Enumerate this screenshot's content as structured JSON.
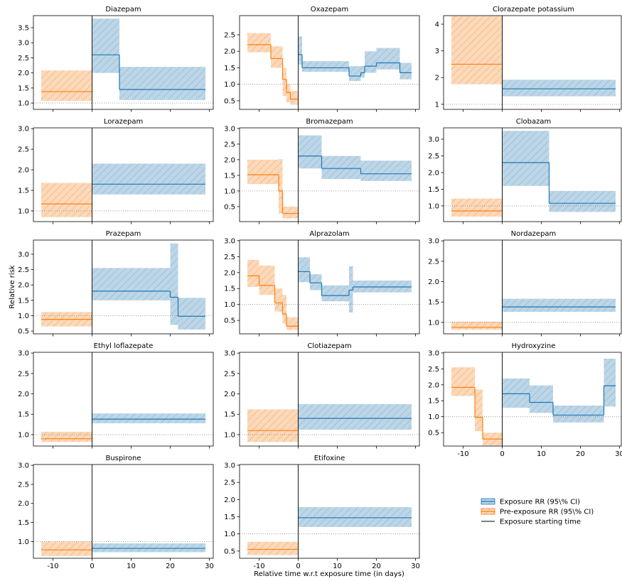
{
  "chart_data": [
    {
      "type": "step",
      "title": "Diazepam",
      "xlim": [
        -15,
        31
      ],
      "ylim": [
        0.79,
        3.9
      ],
      "xticks": [
        -10,
        0,
        10,
        20,
        30
      ],
      "yticks": [
        {
          "value": 1,
          "label": "1.0"
        },
        1.5,
        {
          "value": 2,
          "label": "2.0"
        },
        2.5,
        {
          "value": 3,
          "label": "3.0"
        },
        3.5
      ],
      "show_xticklabels": false,
      "hline": 1,
      "vline": 0,
      "series": [
        {
          "color": "#ff7f0e",
          "bins": [
            -13,
            0
          ],
          "values": [
            1.38
          ],
          "lower": [
            1.07
          ],
          "upper": [
            2.08
          ]
        },
        {
          "color": "#1f77b4",
          "bins": [
            0,
            7,
            29
          ],
          "values": [
            2.6,
            1.45
          ],
          "lower": [
            2.0,
            1.1
          ],
          "upper": [
            3.8,
            2.2
          ]
        }
      ]
    },
    {
      "type": "step",
      "title": "Oxazepam",
      "xlim": [
        -15,
        31
      ],
      "ylim": [
        0.24,
        3.08
      ],
      "xticks": [
        -10,
        0,
        10,
        20,
        30
      ],
      "yticks": [
        0.5,
        {
          "value": 1,
          "label": "1.0"
        },
        1.5,
        {
          "value": 2,
          "label": "2.0"
        },
        2.5
      ],
      "show_xticklabels": false,
      "hline": 1,
      "vline": 0,
      "series": [
        {
          "color": "#ff7f0e",
          "bins": [
            -13,
            -7,
            -4,
            -3,
            -2,
            0
          ],
          "values": [
            2.2,
            1.78,
            1.15,
            0.75,
            0.55
          ],
          "lower": [
            1.97,
            1.5,
            0.65,
            0.45,
            0.38
          ],
          "upper": [
            2.55,
            2.15,
            1.5,
            1.0,
            0.8
          ]
        },
        {
          "color": "#1f77b4",
          "bins": [
            0,
            1,
            13,
            16,
            17,
            20,
            26,
            29
          ],
          "values": [
            1.9,
            1.5,
            1.25,
            1.35,
            1.55,
            1.65,
            1.35
          ],
          "lower": [
            1.6,
            1.38,
            1.1,
            1.2,
            1.35,
            1.45,
            1.15
          ],
          "upper": [
            2.45,
            1.7,
            1.55,
            1.55,
            2.0,
            2.1,
            1.65
          ]
        }
      ]
    },
    {
      "type": "step",
      "title": "Clorazepate potassium",
      "xlim": [
        -15,
        31
      ],
      "ylim": [
        0.81,
        4.32
      ],
      "xticks": [
        -10,
        0,
        10,
        20,
        30
      ],
      "yticks": [
        1,
        2,
        3,
        4
      ],
      "show_xticklabels": false,
      "hline": 1,
      "vline": 0,
      "series": [
        {
          "color": "#ff7f0e",
          "bins": [
            -13,
            0
          ],
          "values": [
            2.5
          ],
          "lower": [
            1.75
          ],
          "upper": [
            4.3
          ]
        },
        {
          "color": "#1f77b4",
          "bins": [
            0,
            29
          ],
          "values": [
            1.58
          ],
          "lower": [
            1.3
          ],
          "upper": [
            1.92
          ]
        }
      ]
    },
    {
      "type": "step",
      "title": "Lorazepam",
      "xlim": [
        -15,
        31
      ],
      "ylim": [
        0.74,
        3.02
      ],
      "xticks": [
        -10,
        0,
        10,
        20,
        30
      ],
      "yticks": [
        {
          "value": 1,
          "label": "1.0"
        },
        1.5,
        {
          "value": 2,
          "label": "2.0"
        },
        2.5,
        {
          "value": 3,
          "label": "3.0"
        }
      ],
      "show_xticklabels": false,
      "hline": 1,
      "vline": 0,
      "series": [
        {
          "color": "#ff7f0e",
          "bins": [
            -13,
            0
          ],
          "values": [
            1.17
          ],
          "lower": [
            0.85
          ],
          "upper": [
            1.68
          ]
        },
        {
          "color": "#1f77b4",
          "bins": [
            0,
            29
          ],
          "values": [
            1.65
          ],
          "lower": [
            1.4
          ],
          "upper": [
            2.15
          ]
        }
      ]
    },
    {
      "type": "step",
      "title": "Bromazepam",
      "xlim": [
        -15,
        31
      ],
      "ylim": [
        0.02,
        3.02
      ],
      "xticks": [
        -10,
        0,
        10,
        20,
        30
      ],
      "yticks": [
        0.5,
        {
          "value": 1,
          "label": "1.0"
        },
        1.5,
        {
          "value": 2,
          "label": "2.0"
        },
        2.5,
        {
          "value": 3,
          "label": "3.0"
        }
      ],
      "show_xticklabels": false,
      "hline": 1,
      "vline": 0,
      "series": [
        {
          "color": "#ff7f0e",
          "bins": [
            -13,
            -5,
            -4,
            0
          ],
          "values": [
            1.52,
            1.0,
            0.28
          ],
          "lower": [
            1.22,
            0.28,
            0.12
          ],
          "upper": [
            2.0,
            2.02,
            0.5
          ]
        },
        {
          "color": "#1f77b4",
          "bins": [
            0,
            6,
            16,
            29
          ],
          "values": [
            2.12,
            1.72,
            1.55
          ],
          "lower": [
            1.72,
            1.38,
            1.32
          ],
          "upper": [
            2.78,
            2.12,
            1.97
          ]
        }
      ]
    },
    {
      "type": "step",
      "title": "Clobazam",
      "xlim": [
        -15,
        31
      ],
      "ylim": [
        0.53,
        3.34
      ],
      "xticks": [
        -10,
        0,
        10,
        20,
        30
      ],
      "yticks": [
        {
          "value": 1,
          "label": "1.0"
        },
        1.5,
        {
          "value": 2,
          "label": "2.0"
        },
        2.5,
        {
          "value": 3,
          "label": "3.0"
        }
      ],
      "show_xticklabels": false,
      "hline": 1,
      "vline": 0,
      "series": [
        {
          "color": "#ff7f0e",
          "bins": [
            -13,
            0
          ],
          "values": [
            0.85
          ],
          "lower": [
            0.68
          ],
          "upper": [
            1.22
          ]
        },
        {
          "color": "#1f77b4",
          "bins": [
            0,
            12,
            29
          ],
          "values": [
            2.3,
            1.08
          ],
          "lower": [
            1.6,
            0.82
          ],
          "upper": [
            3.25,
            1.45
          ]
        }
      ]
    },
    {
      "type": "step",
      "title": "Prazepam",
      "xlim": [
        -15,
        31
      ],
      "ylim": [
        0.41,
        3.46
      ],
      "xticks": [
        -10,
        0,
        10,
        20,
        30
      ],
      "yticks": [
        0.5,
        {
          "value": 1,
          "label": "1.0"
        },
        1.5,
        {
          "value": 2,
          "label": "2.0"
        },
        2.5,
        {
          "value": 3,
          "label": "3.0"
        }
      ],
      "show_xticklabels": false,
      "hline": 1,
      "vline": 0,
      "series": [
        {
          "color": "#ff7f0e",
          "bins": [
            -13,
            0
          ],
          "values": [
            0.88
          ],
          "lower": [
            0.65
          ],
          "upper": [
            1.12
          ]
        },
        {
          "color": "#1f77b4",
          "bins": [
            0,
            20,
            22,
            29
          ],
          "values": [
            1.8,
            1.6,
            0.98
          ],
          "lower": [
            1.5,
            0.7,
            0.55
          ],
          "upper": [
            2.55,
            3.35,
            1.58
          ]
        }
      ]
    },
    {
      "type": "step",
      "title": "Alprazolam",
      "xlim": [
        -15,
        31
      ],
      "ylim": [
        0.08,
        3.02
      ],
      "xticks": [
        -10,
        0,
        10,
        20,
        30
      ],
      "yticks": [
        0.5,
        {
          "value": 1,
          "label": "1.0"
        },
        1.5,
        {
          "value": 2,
          "label": "2.0"
        },
        2.5,
        {
          "value": 3,
          "label": "3.0"
        }
      ],
      "show_xticklabels": false,
      "hline": 1,
      "vline": 0,
      "series": [
        {
          "color": "#ff7f0e",
          "bins": [
            -13,
            -10,
            -6,
            -4,
            -3,
            0
          ],
          "values": [
            1.9,
            1.6,
            1.05,
            0.7,
            0.32
          ],
          "lower": [
            1.55,
            1.3,
            0.78,
            0.4,
            0.2
          ],
          "upper": [
            2.4,
            2.22,
            1.5,
            1.3,
            0.6
          ]
        },
        {
          "color": "#1f77b4",
          "bins": [
            0,
            3,
            6,
            13,
            14,
            29
          ],
          "values": [
            2.03,
            1.68,
            1.28,
            1.45,
            1.55
          ],
          "lower": [
            1.7,
            1.45,
            1.1,
            0.75,
            1.38
          ],
          "upper": [
            2.48,
            1.95,
            1.6,
            2.2,
            1.75
          ]
        }
      ]
    },
    {
      "type": "step",
      "title": "Nordazepam",
      "xlim": [
        -15,
        31
      ],
      "ylim": [
        0.72,
        3.02
      ],
      "xticks": [
        -10,
        0,
        10,
        20,
        30
      ],
      "yticks": [
        {
          "value": 1,
          "label": "1.0"
        },
        1.5,
        {
          "value": 2,
          "label": "2.0"
        },
        2.5,
        {
          "value": 3,
          "label": "3.0"
        }
      ],
      "show_xticklabels": false,
      "hline": 1,
      "vline": 0,
      "series": [
        {
          "color": "#ff7f0e",
          "bins": [
            -13,
            0
          ],
          "values": [
            0.88
          ],
          "lower": [
            0.82
          ],
          "upper": [
            1.02
          ]
        },
        {
          "color": "#1f77b4",
          "bins": [
            0,
            29
          ],
          "values": [
            1.38
          ],
          "lower": [
            1.26
          ],
          "upper": [
            1.58
          ]
        }
      ]
    },
    {
      "type": "step",
      "title": "Ethyl loflazepate",
      "xlim": [
        -15,
        31
      ],
      "ylim": [
        0.72,
        3.02
      ],
      "xticks": [
        -10,
        0,
        10,
        20,
        30
      ],
      "yticks": [
        {
          "value": 1,
          "label": "1.0"
        },
        1.5,
        {
          "value": 2,
          "label": "2.0"
        },
        2.5,
        {
          "value": 3,
          "label": "3.0"
        }
      ],
      "show_xticklabels": false,
      "hline": 1,
      "vline": 0,
      "series": [
        {
          "color": "#ff7f0e",
          "bins": [
            -13,
            0
          ],
          "values": [
            0.9
          ],
          "lower": [
            0.82
          ],
          "upper": [
            1.07
          ]
        },
        {
          "color": "#1f77b4",
          "bins": [
            0,
            29
          ],
          "values": [
            1.38
          ],
          "lower": [
            1.28
          ],
          "upper": [
            1.52
          ]
        }
      ]
    },
    {
      "type": "step",
      "title": "Clotiazepam",
      "xlim": [
        -15,
        31
      ],
      "ylim": [
        0.72,
        3.02
      ],
      "xticks": [
        -10,
        0,
        10,
        20,
        30
      ],
      "yticks": [
        {
          "value": 1,
          "label": "1.0"
        },
        1.5,
        {
          "value": 2,
          "label": "2.0"
        },
        2.5,
        {
          "value": 3,
          "label": "3.0"
        }
      ],
      "show_xticklabels": false,
      "hline": 1,
      "vline": 0,
      "series": [
        {
          "color": "#ff7f0e",
          "bins": [
            -13,
            0
          ],
          "values": [
            1.1
          ],
          "lower": [
            0.82
          ],
          "upper": [
            1.62
          ]
        },
        {
          "color": "#1f77b4",
          "bins": [
            0,
            29
          ],
          "values": [
            1.4
          ],
          "lower": [
            1.12
          ],
          "upper": [
            1.75
          ]
        }
      ]
    },
    {
      "type": "step",
      "title": "Hydroxyzine",
      "xlim": [
        -15,
        31
      ],
      "ylim": [
        0.08,
        3.02
      ],
      "xticks": [
        -10,
        0,
        10,
        20,
        30
      ],
      "yticks": [
        0.5,
        {
          "value": 1,
          "label": "1.0"
        },
        1.5,
        {
          "value": 2,
          "label": "2.0"
        },
        2.5,
        {
          "value": 3,
          "label": "3.0"
        }
      ],
      "show_xticklabels": true,
      "hline": 1,
      "vline": 0,
      "series": [
        {
          "color": "#ff7f0e",
          "bins": [
            -13,
            -7,
            -5,
            0
          ],
          "values": [
            1.92,
            0.98,
            0.3
          ],
          "lower": [
            1.65,
            0.55,
            0.1
          ],
          "upper": [
            2.55,
            1.85,
            0.5
          ]
        },
        {
          "color": "#1f77b4",
          "bins": [
            0,
            7,
            13,
            26,
            29
          ],
          "values": [
            1.72,
            1.45,
            1.05,
            1.97
          ],
          "lower": [
            1.28,
            1.12,
            0.82,
            1.32
          ],
          "upper": [
            2.2,
            1.98,
            1.35,
            2.82
          ]
        }
      ]
    },
    {
      "type": "step",
      "title": "Buspirone",
      "xlim": [
        -15,
        31
      ],
      "ylim": [
        0.56,
        3.02
      ],
      "xticks": [
        -10,
        0,
        10,
        20,
        30
      ],
      "yticks": [
        {
          "value": 1,
          "label": "1.0"
        },
        1.5,
        {
          "value": 2,
          "label": "2.0"
        },
        2.5,
        {
          "value": 3,
          "label": "3.0"
        }
      ],
      "show_xticklabels": true,
      "hline": 1,
      "vline": 0,
      "series": [
        {
          "color": "#ff7f0e",
          "bins": [
            -13,
            0
          ],
          "values": [
            0.78
          ],
          "lower": [
            0.62
          ],
          "upper": [
            1.0
          ]
        },
        {
          "color": "#1f77b4",
          "bins": [
            0,
            29
          ],
          "values": [
            0.82
          ],
          "lower": [
            0.72
          ],
          "upper": [
            0.95
          ]
        }
      ]
    },
    {
      "type": "step",
      "title": "Etifoxine",
      "xlim": [
        -15,
        31
      ],
      "ylim": [
        0.29,
        3.02
      ],
      "xticks": [
        -10,
        0,
        10,
        20,
        30
      ],
      "yticks": [
        0.5,
        {
          "value": 1,
          "label": "1.0"
        },
        1.5,
        {
          "value": 2,
          "label": "2.0"
        },
        2.5,
        {
          "value": 3,
          "label": "3.0"
        }
      ],
      "show_xticklabels": true,
      "hline": 1,
      "vline": 0,
      "series": [
        {
          "color": "#ff7f0e",
          "bins": [
            -13,
            0
          ],
          "values": [
            0.55
          ],
          "lower": [
            0.38
          ],
          "upper": [
            0.77
          ]
        },
        {
          "color": "#1f77b4",
          "bins": [
            0,
            29
          ],
          "values": [
            1.47
          ],
          "lower": [
            1.2
          ],
          "upper": [
            1.78
          ]
        }
      ]
    }
  ],
  "xlabel": "Relative time w.r.t exposure time (in days)",
  "ylabel": "Relative risk",
  "legend": [
    {
      "label": "Exposure RR (95\\% CI)",
      "color": "#1f77b4",
      "kind": "band"
    },
    {
      "label": "Pre-exposure RR (95\\% CI)",
      "color": "#ff7f0e",
      "kind": "band"
    },
    {
      "label": "Exposure starting time",
      "color": "#000000",
      "kind": "line"
    }
  ]
}
